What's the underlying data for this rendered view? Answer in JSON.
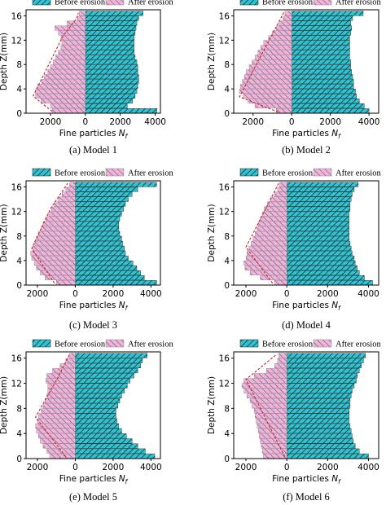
{
  "figure": {
    "colors": {
      "before_fill": "#2ec4d3",
      "after_fill": "#f1b2dd",
      "hatch": "#1a1a1a",
      "envelope": "#d11f1f",
      "frame": "#000000"
    }
  },
  "chart_data": [
    {
      "type": "bar",
      "orientation": "horizontal-butterfly",
      "caption": "(a) Model 1",
      "xlabel_prefix": "Fine particles",
      "xlabel_symbol": "N",
      "xlabel_subscript": "f",
      "ylabel": "Depth Z(mm)",
      "legend": [
        "Before erosion",
        "After erosion"
      ],
      "xticks": [
        "2000",
        "0",
        "2000",
        "4000"
      ],
      "yticks": [
        "0",
        "4",
        "8",
        "12",
        "16"
      ],
      "ylim": [
        0,
        17
      ],
      "xlim": [
        -3400,
        4300
      ],
      "depths": [
        0.4,
        1.2,
        2,
        2.8,
        3.6,
        4.4,
        5.2,
        6,
        6.8,
        7.6,
        8.4,
        9.2,
        10,
        10.8,
        11.6,
        12.4,
        13.2,
        14,
        14.8,
        15.6,
        16.4
      ],
      "series": [
        {
          "name": "Before erosion",
          "values": [
            4100,
            2400,
            2700,
            2850,
            2950,
            3000,
            3050,
            3050,
            3000,
            3000,
            2950,
            2850,
            2800,
            2800,
            2800,
            2800,
            2850,
            2900,
            2950,
            3050,
            3300
          ]
        },
        {
          "name": "After erosion",
          "values": [
            1900,
            2000,
            2550,
            2850,
            2850,
            2750,
            2500,
            2350,
            2150,
            2000,
            1850,
            1700,
            1550,
            1400,
            1350,
            1400,
            1550,
            1750,
            1050,
            450,
            350
          ]
        }
      ],
      "envelope_x": [
        -1900,
        -3000,
        -1300,
        -500,
        -400
      ],
      "envelope_y": [
        0.3,
        2.8,
        12.6,
        15.6,
        16.5
      ]
    },
    {
      "type": "bar",
      "orientation": "horizontal-butterfly",
      "caption": "(b) Model 2",
      "xlabel_prefix": "Fine particles",
      "xlabel_symbol": "N",
      "xlabel_subscript": "f",
      "ylabel": "Depth Z(mm)",
      "legend": [
        "Before erosion",
        "After erosion"
      ],
      "xticks": [
        "2000",
        "0",
        "2000",
        "4000"
      ],
      "yticks": [
        "0",
        "4",
        "8",
        "12",
        "16"
      ],
      "ylim": [
        0,
        17
      ],
      "xlim": [
        -3000,
        4500
      ],
      "depths": [
        0.4,
        1.2,
        2,
        2.8,
        3.6,
        4.4,
        5.2,
        6,
        6.8,
        7.6,
        8.4,
        9.2,
        10,
        10.8,
        11.6,
        12.4,
        13.2,
        14,
        14.8,
        15.6,
        16.4
      ],
      "series": [
        {
          "name": "Before erosion",
          "values": [
            4000,
            3750,
            3500,
            3350,
            3300,
            3200,
            3200,
            3150,
            3100,
            3050,
            3050,
            3000,
            3000,
            3000,
            3000,
            3000,
            3050,
            3100,
            3050,
            3150,
            3700
          ]
        },
        {
          "name": "After erosion",
          "values": [
            800,
            1900,
            2250,
            2500,
            2700,
            2650,
            2550,
            2450,
            2350,
            2200,
            2050,
            1900,
            1750,
            1600,
            1450,
            1200,
            1000,
            800,
            650,
            450,
            350
          ]
        }
      ],
      "envelope_x": [
        -700,
        -2700,
        -1500,
        -400
      ],
      "envelope_y": [
        0.2,
        2.7,
        10,
        16.6
      ]
    },
    {
      "type": "bar",
      "orientation": "horizontal-butterfly",
      "caption": "(c) Model 3",
      "xlabel_prefix": "Fine particles",
      "xlabel_symbol": "N",
      "xlabel_subscript": "f",
      "ylabel": "Depth Z(mm)",
      "legend": [
        "Before erosion",
        "After erosion"
      ],
      "xticks": [
        "2000",
        "0",
        "2000",
        "4000"
      ],
      "yticks": [
        "0",
        "4",
        "8",
        "12",
        "16"
      ],
      "ylim": [
        0,
        17
      ],
      "xlim": [
        -2600,
        4500
      ],
      "depths": [
        0.4,
        1.2,
        2,
        2.8,
        3.6,
        4.4,
        5.2,
        6,
        6.8,
        7.6,
        8.4,
        9.2,
        10,
        10.8,
        11.6,
        12.4,
        13.2,
        14,
        14.8,
        15.6,
        16.4
      ],
      "series": [
        {
          "name": "Before erosion",
          "values": [
            4300,
            3650,
            3450,
            3250,
            3050,
            2800,
            2650,
            2600,
            2500,
            2450,
            2350,
            2300,
            2300,
            2350,
            2450,
            2550,
            2650,
            2800,
            3000,
            3300,
            4300
          ]
        },
        {
          "name": "After erosion",
          "values": [
            1000,
            1600,
            1850,
            2050,
            2150,
            2300,
            2350,
            2250,
            2150,
            2050,
            1950,
            1800,
            1700,
            1550,
            1400,
            1250,
            1100,
            900,
            700,
            500,
            300
          ]
        }
      ],
      "envelope_x": [
        -1100,
        -2300,
        -1300,
        -400
      ],
      "envelope_y": [
        0.3,
        6,
        12.5,
        16.6
      ]
    },
    {
      "type": "bar",
      "orientation": "horizontal-butterfly",
      "caption": "(d) Model 4",
      "xlabel_prefix": "Fine particles",
      "xlabel_symbol": "N",
      "xlabel_subscript": "f",
      "ylabel": "Depth Z(mm)",
      "legend": [
        "Before erosion",
        "After erosion"
      ],
      "xticks": [
        "2000",
        "0",
        "2000",
        "4000"
      ],
      "yticks": [
        "0",
        "4",
        "8",
        "12",
        "16"
      ],
      "ylim": [
        0,
        17
      ],
      "xlim": [
        -2600,
        4500
      ],
      "depths": [
        0.4,
        1.2,
        2,
        2.8,
        3.6,
        4.4,
        5.2,
        6,
        6.8,
        7.6,
        8.4,
        9.2,
        10,
        10.8,
        11.6,
        12.4,
        13.2,
        14,
        14.8,
        15.6,
        16.4
      ],
      "series": [
        {
          "name": "Before erosion",
          "values": [
            4200,
            3800,
            3550,
            3450,
            3350,
            3300,
            3200,
            3150,
            3100,
            3050,
            3050,
            3050,
            3050,
            3050,
            3050,
            3100,
            3100,
            3150,
            3200,
            3300,
            3500
          ]
        },
        {
          "name": "After erosion",
          "values": [
            600,
            1300,
            1800,
            2050,
            2100,
            2000,
            1950,
            1850,
            1750,
            1650,
            1550,
            1450,
            1400,
            1300,
            1200,
            1100,
            950,
            800,
            600,
            450,
            350
          ]
        }
      ],
      "envelope_x": [
        -700,
        -2000,
        -1100,
        -400
      ],
      "envelope_y": [
        0.3,
        6.2,
        12,
        16.6
      ]
    },
    {
      "type": "bar",
      "orientation": "horizontal-butterfly",
      "caption": "(e) Model 5",
      "xlabel_prefix": "Fine particles",
      "xlabel_symbol": "N",
      "xlabel_subscript": "f",
      "ylabel": "Depth Z(mm)",
      "legend": [
        "Before erosion",
        "After erosion"
      ],
      "xticks": [
        "2000",
        "0",
        "2000",
        "4000"
      ],
      "yticks": [
        "0",
        "4",
        "8",
        "12",
        "16"
      ],
      "ylim": [
        0,
        17
      ],
      "xlim": [
        -2600,
        4500
      ],
      "depths": [
        0.4,
        1.2,
        2,
        2.8,
        3.6,
        4.4,
        5.2,
        6,
        6.8,
        7.6,
        8.4,
        9.2,
        10,
        10.8,
        11.6,
        12.4,
        13.2,
        14,
        14.8,
        15.6,
        16.4
      ],
      "series": [
        {
          "name": "Before erosion",
          "values": [
            4200,
            3700,
            3300,
            3000,
            2700,
            2450,
            2300,
            2200,
            2150,
            2150,
            2250,
            2350,
            2450,
            2600,
            2750,
            2900,
            3100,
            3300,
            3450,
            3550,
            3800
          ]
        },
        {
          "name": "After erosion",
          "values": [
            1350,
            1500,
            1700,
            1850,
            1950,
            2050,
            2100,
            2000,
            1950,
            1800,
            1700,
            1600,
            1500,
            1450,
            1450,
            1550,
            1500,
            1200,
            800,
            500,
            300
          ]
        }
      ],
      "envelope_x": [
        -500,
        -2100,
        -900,
        -300
      ],
      "envelope_y": [
        0.3,
        6.6,
        13,
        16.6
      ]
    },
    {
      "type": "bar",
      "orientation": "horizontal-butterfly",
      "caption": "(f) Model 6",
      "xlabel_prefix": "Fine particles",
      "xlabel_symbol": "N",
      "xlabel_subscript": "f",
      "ylabel": "Depth Z(mm)",
      "legend": [
        "Before erosion",
        "After erosion"
      ],
      "xticks": [
        "2000",
        "0",
        "2000",
        "4000"
      ],
      "yticks": [
        "0",
        "4",
        "8",
        "12",
        "16"
      ],
      "ylim": [
        0,
        17
      ],
      "xlim": [
        -2600,
        4500
      ],
      "depths": [
        0.4,
        1.2,
        2,
        2.8,
        3.6,
        4.4,
        5.2,
        6,
        6.8,
        7.6,
        8.4,
        9.2,
        10,
        10.8,
        11.6,
        12.4,
        13.2,
        14,
        14.8,
        15.6,
        16.4
      ],
      "series": [
        {
          "name": "Before erosion",
          "values": [
            4000,
            3550,
            3350,
            3250,
            3200,
            3150,
            3100,
            3050,
            3050,
            3050,
            3100,
            3100,
            3150,
            3200,
            3300,
            3400,
            3450,
            3550,
            3650,
            3750,
            3850
          ]
        },
        {
          "name": "After erosion",
          "values": [
            1150,
            1200,
            1250,
            1300,
            1350,
            1400,
            1450,
            1500,
            1550,
            1600,
            1700,
            1800,
            1950,
            2100,
            2200,
            2100,
            1600,
            1000,
            600,
            450,
            400
          ]
        }
      ],
      "envelope_x": [
        -100,
        -2000,
        -500
      ],
      "envelope_y": [
        0.3,
        12.6,
        16.6
      ]
    }
  ]
}
